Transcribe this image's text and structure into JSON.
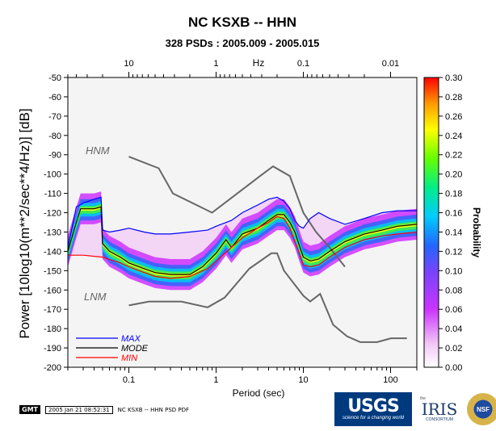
{
  "chart_data": {
    "type": "heatmap",
    "title": "NC KSXB -- HHN",
    "subtitle": "328 PSDs : 2005.009 - 2005.015",
    "xlabel": "Period (sec)",
    "ylabel": "Power [10log10(m**2/sec**4/Hz)] [dB]",
    "top_axis_label": "Hz",
    "x_scale": "log",
    "xlim": [
      0.02,
      200
    ],
    "ylim": [
      -200,
      -50
    ],
    "x_ticks": [
      0.1,
      1,
      10,
      100
    ],
    "x_tick_labels": [
      "0.1",
      "1",
      "10",
      "100"
    ],
    "top_ticks_hz": [
      10,
      1,
      0.1,
      0.01
    ],
    "top_tick_labels": [
      "10",
      "1",
      "0.1",
      "0.01"
    ],
    "y_ticks": [
      -50,
      -60,
      -70,
      -80,
      -90,
      -100,
      -110,
      -120,
      -130,
      -140,
      -150,
      -160,
      -170,
      -180,
      -190,
      -200
    ],
    "colorbar": {
      "label": "Probability",
      "range": [
        0,
        0.3
      ],
      "ticks": [
        "0.00",
        "0.02",
        "0.04",
        "0.06",
        "0.08",
        "0.10",
        "0.12",
        "0.14",
        "0.16",
        "0.18",
        "0.20",
        "0.22",
        "0.24",
        "0.26",
        "0.28",
        "0.30"
      ]
    },
    "reference_curves": [
      {
        "name": "HNM",
        "x": [
          0.1,
          0.22,
          0.32,
          0.9,
          3.2,
          4.5,
          7,
          10,
          14,
          20,
          30
        ],
        "y": [
          -91,
          -97,
          -110,
          -120,
          -101,
          -96,
          -101,
          -120,
          -130,
          -138,
          -148
        ]
      },
      {
        "name": "LNM",
        "x": [
          0.1,
          0.17,
          0.4,
          0.8,
          1.25,
          2.4,
          4.3,
          5,
          6,
          10,
          12,
          15.6,
          21.9,
          31.6,
          45,
          70,
          101,
          154
        ],
        "y": [
          -168,
          -166,
          -166,
          -169,
          -164,
          -149,
          -141,
          -141,
          -150,
          -163,
          -166,
          -162,
          -178,
          -184,
          -187,
          -187,
          -185,
          -185
        ]
      }
    ],
    "series": [
      {
        "name": "MAX",
        "color": "#0000ff",
        "x": [
          0.02,
          0.025,
          0.03,
          0.04,
          0.048,
          0.05,
          0.06,
          0.08,
          0.1,
          0.15,
          0.2,
          0.3,
          0.5,
          0.8,
          1,
          1.5,
          2,
          3,
          4,
          5,
          6,
          7,
          8,
          9,
          10,
          12,
          15,
          20,
          30,
          50,
          80,
          120,
          200
        ],
        "y": [
          -138,
          -117,
          -115,
          -113,
          -112,
          -129,
          -130,
          -129,
          -128,
          -130,
          -131,
          -131,
          -130,
          -129,
          -127,
          -124,
          -120,
          -116,
          -113,
          -112,
          -114,
          -118,
          -124,
          -127,
          -128,
          -123,
          -120,
          -123,
          -126,
          -123,
          -120,
          -119,
          -119
        ]
      },
      {
        "name": "MODE",
        "color": "#000000",
        "x": [
          0.02,
          0.025,
          0.028,
          0.04,
          0.048,
          0.05,
          0.06,
          0.08,
          0.1,
          0.15,
          0.2,
          0.3,
          0.5,
          0.7,
          1,
          1.3,
          1.5,
          2,
          3,
          4,
          5,
          6,
          7,
          8,
          9,
          10,
          12,
          15,
          20,
          30,
          50,
          80,
          120,
          200
        ],
        "y": [
          -140,
          -125,
          -118,
          -118,
          -117,
          -136,
          -140,
          -143,
          -146,
          -149,
          -151,
          -152,
          -152,
          -148,
          -141,
          -134,
          -138,
          -131,
          -128,
          -124,
          -121,
          -121,
          -125,
          -130,
          -137,
          -143,
          -145,
          -144,
          -140,
          -135,
          -131,
          -129,
          -127,
          -126
        ]
      },
      {
        "name": "MIN",
        "color": "#ff0000",
        "x": [
          0.02,
          0.03,
          0.05,
          0.08,
          0.1,
          0.15,
          0.2,
          0.3,
          0.5,
          0.8,
          1,
          1.5,
          2,
          3,
          4,
          5,
          6,
          7,
          8,
          9,
          10,
          12,
          15,
          20,
          30,
          50,
          80,
          120,
          200
        ],
        "y": [
          -142,
          -142,
          -143,
          -146,
          -148,
          -151,
          -153,
          -154,
          -153,
          -149,
          -145,
          -138,
          -133,
          -128,
          -125,
          -122,
          -123,
          -128,
          -135,
          -141,
          -147,
          -148,
          -147,
          -143,
          -138,
          -134,
          -132,
          -131,
          -130
        ]
      }
    ],
    "annotations": [
      "HNM",
      "LNM"
    ],
    "legend_position": "bottom-left",
    "grid": false
  },
  "footer": {
    "gmt_label": "GMT",
    "timestamp": "2005 Jan 21 08:52:31",
    "caption": "NC KSXB -- HHN PSD PDF"
  },
  "logos": {
    "usgs": "USGS",
    "usgs_tagline": "science for a changing world",
    "iris_the": "the",
    "iris": "IRIS",
    "iris_sub": "CONSORTIUM",
    "nsf": "NSF"
  }
}
